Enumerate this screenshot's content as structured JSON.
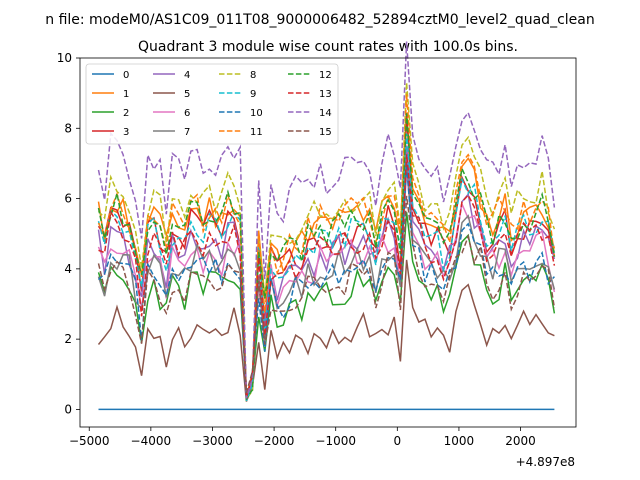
{
  "figure_suptitle": "n file: modeM0/AS1C09_011T08_9000006482_52894cztM0_level2_quad_clean",
  "chart_data": {
    "type": "line",
    "title": "Quadrant 3 module wise count rates with 100.0s bins.",
    "xlabel": "",
    "ylabel": "",
    "x_offset_label": "+4.897e8",
    "xlim": [
      -5150,
      2900
    ],
    "ylim": [
      -0.5,
      10
    ],
    "xticks": [
      -5000,
      -4000,
      -3000,
      -2000,
      -1000,
      0,
      1000,
      2000
    ],
    "xtick_labels": [
      "−5000",
      "−4000",
      "−3000",
      "−2000",
      "−1000",
      "0",
      "1000",
      "2000"
    ],
    "yticks": [
      0,
      2,
      4,
      6,
      8,
      10
    ],
    "ytick_labels": [
      "0",
      "2",
      "4",
      "6",
      "8",
      "10"
    ],
    "legend": {
      "placement": "top-left",
      "columns": 3
    },
    "series": [
      {
        "name": "0",
        "color": "#1f77b4",
        "dashed": false,
        "profile": [
          0,
          0,
          0,
          0,
          0,
          0,
          0,
          0,
          0,
          0,
          0,
          0,
          0,
          0,
          0,
          0,
          0,
          0,
          0,
          0,
          0,
          0,
          0,
          0,
          0,
          0,
          0,
          0,
          0,
          0,
          0,
          0,
          0,
          0,
          0,
          0,
          0,
          0,
          0,
          0,
          0,
          0,
          0,
          0,
          0,
          0,
          0,
          0,
          0,
          0,
          0,
          0,
          0,
          0,
          0,
          0,
          0,
          0,
          0,
          0,
          0,
          0,
          0,
          0,
          0,
          0,
          0,
          0,
          0,
          0,
          0,
          0,
          0,
          0,
          0
        ],
        "scale": 0,
        "offset": 0,
        "seed": 0
      },
      {
        "name": "1",
        "color": "#ff7f0e",
        "dashed": false,
        "scale": 1.0,
        "offset": 0.35,
        "seed": 11
      },
      {
        "name": "2",
        "color": "#2ca02c",
        "dashed": false,
        "scale": 0.78,
        "offset": -0.55,
        "seed": 23
      },
      {
        "name": "3",
        "color": "#d62728",
        "dashed": false,
        "scale": 0.95,
        "offset": 0.15,
        "seed": 37
      },
      {
        "name": "4",
        "color": "#9467bd",
        "dashed": false,
        "scale": 0.92,
        "offset": -0.1,
        "seed": 41
      },
      {
        "name": "5",
        "color": "#8c564b",
        "dashed": false,
        "scale": 0.68,
        "offset": -1.25,
        "seed": 53
      },
      {
        "name": "6",
        "color": "#e377c2",
        "dashed": false,
        "scale": 0.9,
        "offset": -0.25,
        "seed": 67
      },
      {
        "name": "7",
        "color": "#7f7f7f",
        "dashed": false,
        "scale": 0.88,
        "offset": -0.4,
        "seed": 71
      },
      {
        "name": "8",
        "color": "#bcbd22",
        "dashed": true,
        "scale": 1.05,
        "offset": 0.55,
        "seed": 83
      },
      {
        "name": "9",
        "color": "#17becf",
        "dashed": true,
        "scale": 0.97,
        "offset": 0.05,
        "seed": 97
      },
      {
        "name": "10",
        "color": "#1f77b4",
        "dashed": true,
        "scale": 0.86,
        "offset": -0.45,
        "seed": 101
      },
      {
        "name": "11",
        "color": "#ff7f0e",
        "dashed": true,
        "scale": 1.02,
        "offset": 0.3,
        "seed": 113
      },
      {
        "name": "12",
        "color": "#2ca02c",
        "dashed": true,
        "scale": 1.0,
        "offset": 0.2,
        "seed": 127
      },
      {
        "name": "13",
        "color": "#d62728",
        "dashed": true,
        "scale": 0.93,
        "offset": -0.05,
        "seed": 131
      },
      {
        "name": "14",
        "color": "#9467bd",
        "dashed": true,
        "scale": 1.15,
        "offset": 1.05,
        "seed": 149
      },
      {
        "name": "15",
        "color": "#8c564b",
        "dashed": true,
        "scale": 0.84,
        "offset": -0.6,
        "seed": 151
      }
    ],
    "x_start": -4850,
    "x_step": 100,
    "base_profile": [
      5.2,
      4.6,
      5.7,
      5.5,
      5.4,
      5.0,
      4.4,
      3.2,
      5.1,
      5.3,
      4.9,
      4.2,
      5.2,
      5.0,
      4.8,
      5.4,
      5.3,
      5.1,
      5.4,
      5.2,
      5.0,
      5.6,
      5.5,
      5.2,
      0.35,
      0.8,
      4.6,
      2.6,
      4.5,
      3.9,
      4.0,
      4.3,
      4.5,
      4.4,
      4.8,
      4.7,
      5.0,
      4.8,
      4.9,
      5.1,
      5.0,
      5.2,
      5.3,
      5.2,
      5.0,
      4.5,
      5.3,
      5.6,
      5.4,
      4.4,
      8.3,
      6.2,
      5.6,
      5.2,
      5.0,
      4.8,
      4.5,
      4.8,
      5.6,
      6.4,
      6.6,
      6.1,
      5.8,
      5.0,
      4.9,
      5.2,
      5.5,
      4.6,
      5.0,
      5.3,
      5.1,
      5.4,
      5.6,
      5.2,
      4.4
    ]
  }
}
